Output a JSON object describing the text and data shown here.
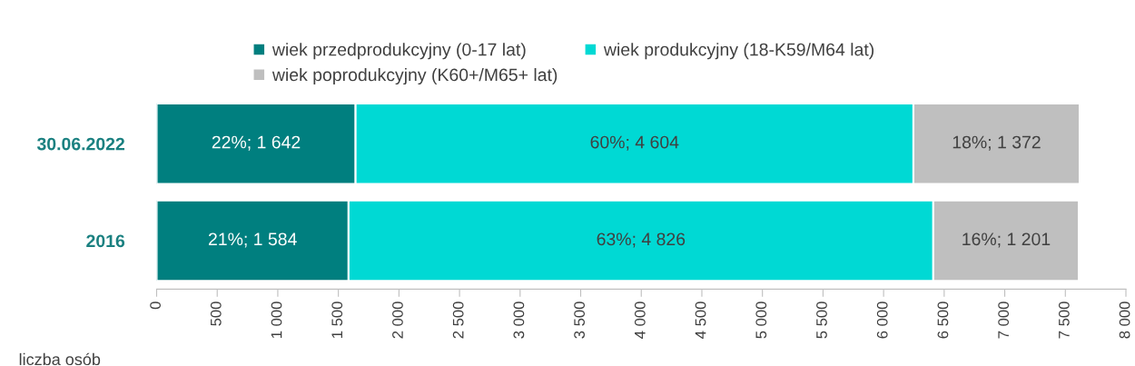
{
  "chart_data": {
    "type": "bar",
    "orientation": "horizontal",
    "stacked": true,
    "xlabel": "liczba osób",
    "categories": [
      "30.06.2022",
      "2016"
    ],
    "series": [
      {
        "name": "wiek przedprodukcyjny (0-17 lat)",
        "color": "#007f7f",
        "values": [
          1642,
          1584
        ],
        "value_labels": [
          "22%; 1 642",
          "21%; 1 584"
        ]
      },
      {
        "name": "wiek produkcyjny (18-K59/M64 lat)",
        "color": "#00d9d4",
        "values": [
          4604,
          4826
        ],
        "value_labels": [
          "60%; 4 604",
          "63%; 4 826"
        ]
      },
      {
        "name": "wiek poprodukcyjny (K60+/M65+ lat)",
        "color": "#bfbfbf",
        "values": [
          1372,
          1201
        ],
        "value_labels": [
          "18%; 1 372",
          "16%; 1 201"
        ]
      }
    ],
    "xlim": [
      0,
      8000
    ],
    "xticks": [
      0,
      500,
      {
        "value": 1000,
        "label": "1 000"
      },
      {
        "value": 1500,
        "label": "1 500"
      },
      {
        "value": 2000,
        "label": "2 000"
      },
      {
        "value": 2500,
        "label": "2 500"
      },
      {
        "value": 3000,
        "label": "3 000"
      },
      {
        "value": 3500,
        "label": "3 500"
      },
      {
        "value": 4000,
        "label": "4 000"
      },
      {
        "value": 4500,
        "label": "4 500"
      },
      {
        "value": 5000,
        "label": "5 000"
      },
      {
        "value": 5500,
        "label": "5 500"
      },
      {
        "value": 6000,
        "label": "6 000"
      },
      {
        "value": 6500,
        "label": "6 500"
      },
      {
        "value": 7000,
        "label": "7 000"
      },
      {
        "value": 7500,
        "label": "7 500"
      },
      {
        "value": 8000,
        "label": "8 000"
      }
    ],
    "grid": false,
    "legend": "top"
  }
}
